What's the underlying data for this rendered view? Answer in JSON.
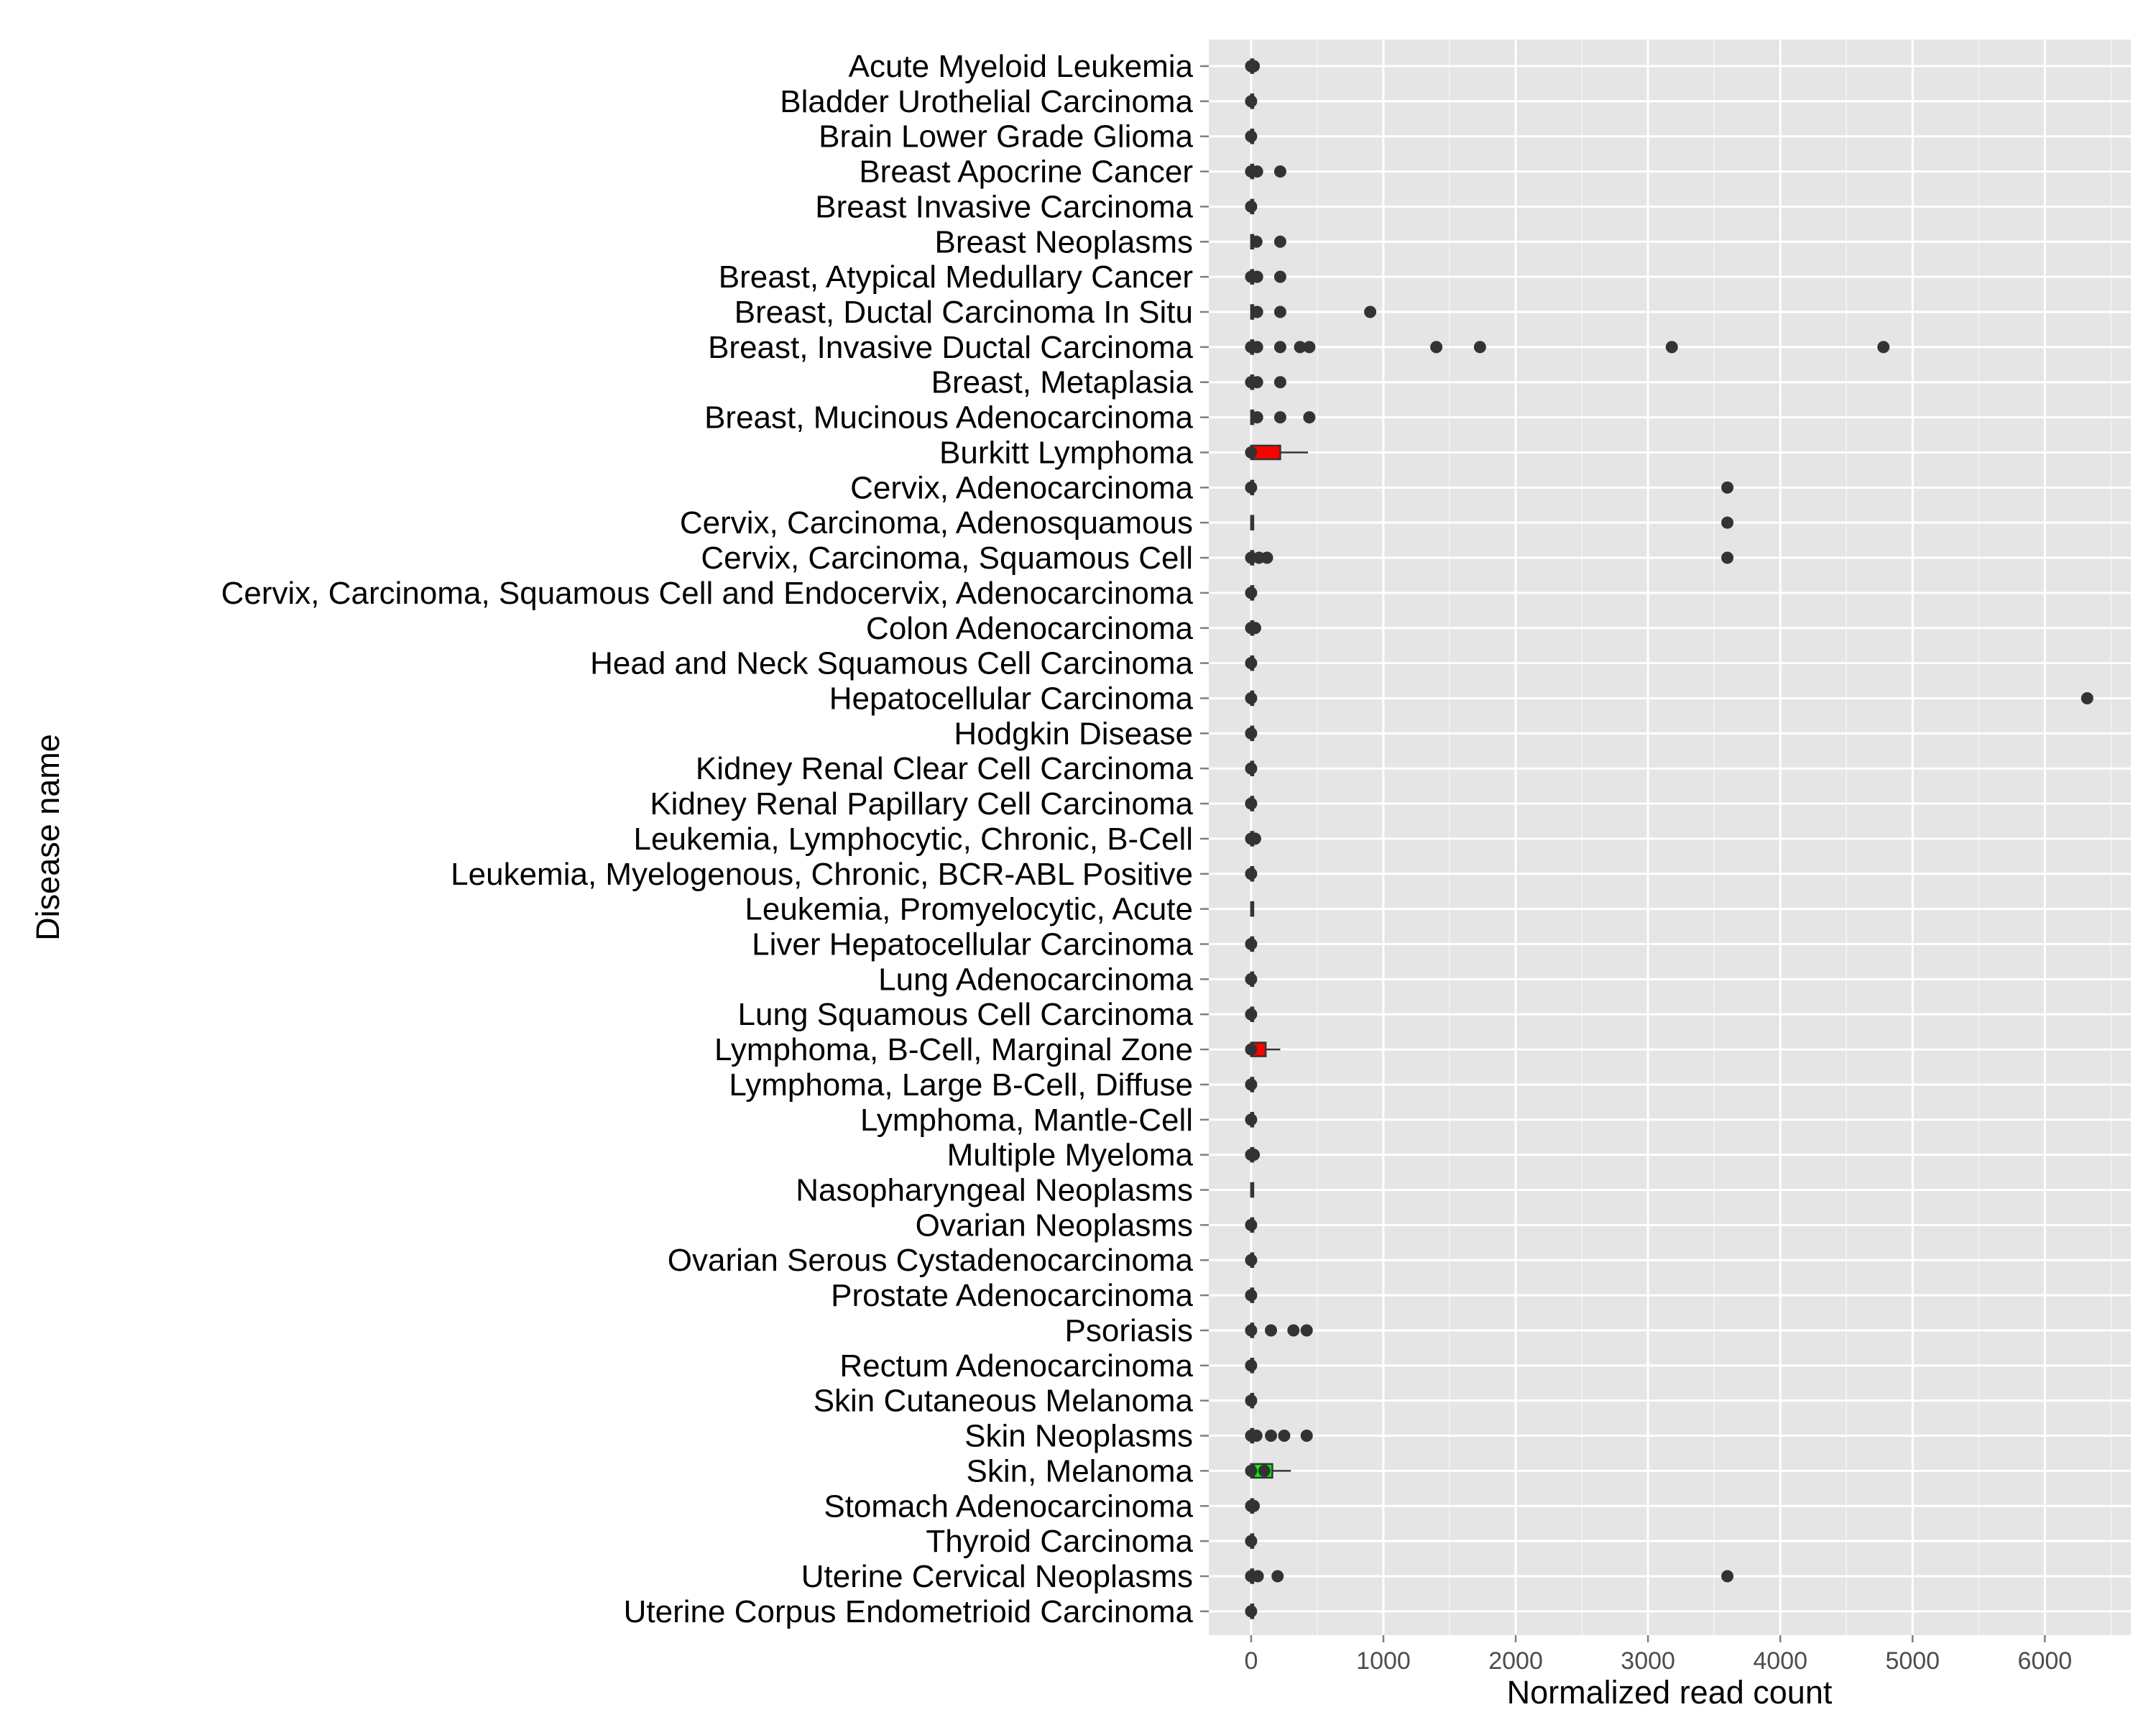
{
  "chart_data": {
    "type": "boxplot",
    "orientation": "horizontal",
    "xlabel": "Normalized read count",
    "ylabel": "Disease name",
    "xlim": [
      -320,
      6650
    ],
    "x_ticks": [
      0,
      1000,
      2000,
      3000,
      4000,
      5000,
      6000
    ],
    "x_tick_labels": [
      "0",
      "1000",
      "2000",
      "3000",
      "4000",
      "5000",
      "6000"
    ],
    "grid": true,
    "background": "#e5e5e5",
    "gridline_color": "#ffffff",
    "box_colors": {
      "default": "#ffffff",
      "red": "#ff0000",
      "green": "#00ff00"
    },
    "categories": [
      "Acute Myeloid Leukemia",
      "Bladder Urothelial Carcinoma",
      "Brain Lower Grade Glioma",
      "Breast Apocrine Cancer",
      "Breast Invasive Carcinoma",
      "Breast Neoplasms",
      "Breast, Atypical Medullary Cancer",
      "Breast, Ductal Carcinoma In Situ",
      "Breast, Invasive Ductal Carcinoma",
      "Breast, Metaplasia",
      "Breast, Mucinous Adenocarcinoma",
      "Burkitt Lymphoma",
      "Cervix, Adenocarcinoma",
      "Cervix, Carcinoma, Adenosquamous",
      "Cervix, Carcinoma, Squamous Cell",
      "Cervix, Carcinoma, Squamous Cell and Endocervix, Adenocarcinoma",
      "Colon Adenocarcinoma",
      "Head and Neck Squamous Cell Carcinoma",
      "Hepatocellular Carcinoma",
      "Hodgkin Disease",
      "Kidney Renal Clear Cell Carcinoma",
      "Kidney Renal Papillary Cell Carcinoma",
      "Leukemia, Lymphocytic, Chronic, B-Cell",
      "Leukemia, Myelogenous, Chronic, BCR-ABL Positive",
      "Leukemia, Promyelocytic, Acute",
      "Liver Hepatocellular Carcinoma",
      "Lung Adenocarcinoma",
      "Lung Squamous Cell Carcinoma",
      "Lymphoma, B-Cell, Marginal Zone",
      "Lymphoma, Large B-Cell, Diffuse",
      "Lymphoma, Mantle-Cell",
      "Multiple Myeloma",
      "Nasopharyngeal Neoplasms",
      "Ovarian Neoplasms",
      "Ovarian Serous Cystadenocarcinoma",
      "Prostate Adenocarcinoma",
      "Psoriasis",
      "Rectum Adenocarcinoma",
      "Skin Cutaneous Melanoma",
      "Skin Neoplasms",
      "Skin, Melanoma",
      "Stomach Adenocarcinoma",
      "Thyroid Carcinoma",
      "Uterine Cervical Neoplasms",
      "Uterine Corpus Endometrioid Carcinoma"
    ],
    "boxes": [
      {
        "q1": 0,
        "median": 5,
        "q3": 15,
        "whisker_high": 40,
        "color": "default",
        "outliers": [
          0,
          20
        ]
      },
      {
        "q1": 0,
        "median": 3,
        "q3": 10,
        "whisker_high": 25,
        "color": "default",
        "outliers": [
          0
        ]
      },
      {
        "q1": 0,
        "median": 3,
        "q3": 10,
        "whisker_high": 25,
        "color": "default",
        "outliers": [
          0
        ]
      },
      {
        "q1": 0,
        "median": 3,
        "q3": 10,
        "whisker_high": 20,
        "color": "default",
        "outliers": [
          0,
          45,
          220
        ]
      },
      {
        "q1": 0,
        "median": 3,
        "q3": 10,
        "whisker_high": 25,
        "color": "default",
        "outliers": [
          0
        ]
      },
      {
        "q1": 0,
        "median": 3,
        "q3": 10,
        "whisker_high": 20,
        "color": "default",
        "outliers": [
          40,
          220
        ]
      },
      {
        "q1": 0,
        "median": 3,
        "q3": 10,
        "whisker_high": 20,
        "color": "default",
        "outliers": [
          0,
          45,
          220
        ]
      },
      {
        "q1": 0,
        "median": 3,
        "q3": 10,
        "whisker_high": 20,
        "color": "default",
        "outliers": [
          45,
          220,
          900
        ]
      },
      {
        "q1": 0,
        "median": 3,
        "q3": 15,
        "whisker_high": 40,
        "color": "default",
        "outliers": [
          0,
          45,
          220,
          370,
          440,
          1400,
          1730,
          3180,
          4780
        ]
      },
      {
        "q1": 0,
        "median": 3,
        "q3": 10,
        "whisker_high": 20,
        "color": "default",
        "outliers": [
          0,
          45,
          220
        ]
      },
      {
        "q1": 0,
        "median": 3,
        "q3": 10,
        "whisker_high": 20,
        "color": "default",
        "outliers": [
          45,
          220,
          440
        ]
      },
      {
        "q1": 0,
        "median": 5,
        "q3": 220,
        "whisker_high": 430,
        "color": "red",
        "outliers": [
          0
        ]
      },
      {
        "q1": 0,
        "median": 3,
        "q3": 10,
        "whisker_high": 25,
        "color": "default",
        "outliers": [
          0,
          3600
        ]
      },
      {
        "q1": 0,
        "median": 3,
        "q3": 10,
        "whisker_high": 20,
        "color": "default",
        "outliers": [
          3600
        ]
      },
      {
        "q1": 0,
        "median": 3,
        "q3": 10,
        "whisker_high": 20,
        "color": "default",
        "outliers": [
          0,
          60,
          120,
          3600
        ]
      },
      {
        "q1": 0,
        "median": 3,
        "q3": 10,
        "whisker_high": 20,
        "color": "default",
        "outliers": [
          0
        ]
      },
      {
        "q1": 0,
        "median": 3,
        "q3": 10,
        "whisker_high": 20,
        "color": "default",
        "outliers": [
          0,
          30
        ]
      },
      {
        "q1": 0,
        "median": 3,
        "q3": 10,
        "whisker_high": 25,
        "color": "default",
        "outliers": [
          0
        ]
      },
      {
        "q1": 0,
        "median": 3,
        "q3": 10,
        "whisker_high": 25,
        "color": "default",
        "outliers": [
          0,
          6320
        ]
      },
      {
        "q1": 0,
        "median": 3,
        "q3": 10,
        "whisker_high": 20,
        "color": "default",
        "outliers": [
          0
        ]
      },
      {
        "q1": 0,
        "median": 3,
        "q3": 10,
        "whisker_high": 25,
        "color": "default",
        "outliers": [
          0
        ]
      },
      {
        "q1": 0,
        "median": 3,
        "q3": 10,
        "whisker_high": 20,
        "color": "default",
        "outliers": [
          0
        ]
      },
      {
        "q1": 0,
        "median": 3,
        "q3": 10,
        "whisker_high": 20,
        "color": "default",
        "outliers": [
          0,
          30
        ]
      },
      {
        "q1": 0,
        "median": 3,
        "q3": 10,
        "whisker_high": 25,
        "color": "default",
        "outliers": [
          0
        ]
      },
      {
        "q1": 0,
        "median": 3,
        "q3": 10,
        "whisker_high": 20,
        "color": "default",
        "outliers": []
      },
      {
        "q1": 0,
        "median": 3,
        "q3": 10,
        "whisker_high": 25,
        "color": "default",
        "outliers": [
          0
        ]
      },
      {
        "q1": 0,
        "median": 3,
        "q3": 10,
        "whisker_high": 25,
        "color": "default",
        "outliers": [
          0
        ]
      },
      {
        "q1": 0,
        "median": 3,
        "q3": 10,
        "whisker_high": 25,
        "color": "default",
        "outliers": [
          0
        ]
      },
      {
        "q1": 0,
        "median": 10,
        "q3": 110,
        "whisker_high": 220,
        "color": "red",
        "outliers": [
          0
        ]
      },
      {
        "q1": 0,
        "median": 3,
        "q3": 10,
        "whisker_high": 20,
        "color": "default",
        "outliers": [
          0
        ]
      },
      {
        "q1": 0,
        "median": 3,
        "q3": 10,
        "whisker_high": 20,
        "color": "default",
        "outliers": [
          0
        ]
      },
      {
        "q1": 0,
        "median": 3,
        "q3": 10,
        "whisker_high": 20,
        "color": "default",
        "outliers": [
          0,
          20
        ]
      },
      {
        "q1": 0,
        "median": 3,
        "q3": 10,
        "whisker_high": 20,
        "color": "default",
        "outliers": []
      },
      {
        "q1": 0,
        "median": 3,
        "q3": 10,
        "whisker_high": 20,
        "color": "default",
        "outliers": [
          0
        ]
      },
      {
        "q1": 0,
        "median": 3,
        "q3": 10,
        "whisker_high": 25,
        "color": "default",
        "outliers": [
          0
        ]
      },
      {
        "q1": 0,
        "median": 3,
        "q3": 10,
        "whisker_high": 20,
        "color": "default",
        "outliers": [
          0
        ]
      },
      {
        "q1": 0,
        "median": 3,
        "q3": 10,
        "whisker_high": 20,
        "color": "default",
        "outliers": [
          0,
          150,
          320,
          420
        ]
      },
      {
        "q1": 0,
        "median": 3,
        "q3": 10,
        "whisker_high": 25,
        "color": "default",
        "outliers": [
          0
        ]
      },
      {
        "q1": 0,
        "median": 3,
        "q3": 10,
        "whisker_high": 20,
        "color": "default",
        "outliers": [
          0
        ]
      },
      {
        "q1": 0,
        "median": 3,
        "q3": 10,
        "whisker_high": 20,
        "color": "default",
        "outliers": [
          0,
          40,
          150,
          250,
          420
        ]
      },
      {
        "q1": 0,
        "median": 20,
        "q3": 160,
        "whisker_high": 300,
        "color": "green",
        "outliers": [
          0,
          100
        ]
      },
      {
        "q1": 0,
        "median": 3,
        "q3": 10,
        "whisker_high": 25,
        "color": "default",
        "outliers": [
          0,
          20
        ]
      },
      {
        "q1": 0,
        "median": 3,
        "q3": 10,
        "whisker_high": 20,
        "color": "default",
        "outliers": [
          0
        ]
      },
      {
        "q1": 0,
        "median": 3,
        "q3": 10,
        "whisker_high": 20,
        "color": "default",
        "outliers": [
          0,
          50,
          200,
          3600
        ]
      },
      {
        "q1": 0,
        "median": 3,
        "q3": 10,
        "whisker_high": 25,
        "color": "default",
        "outliers": [
          0
        ]
      }
    ]
  }
}
